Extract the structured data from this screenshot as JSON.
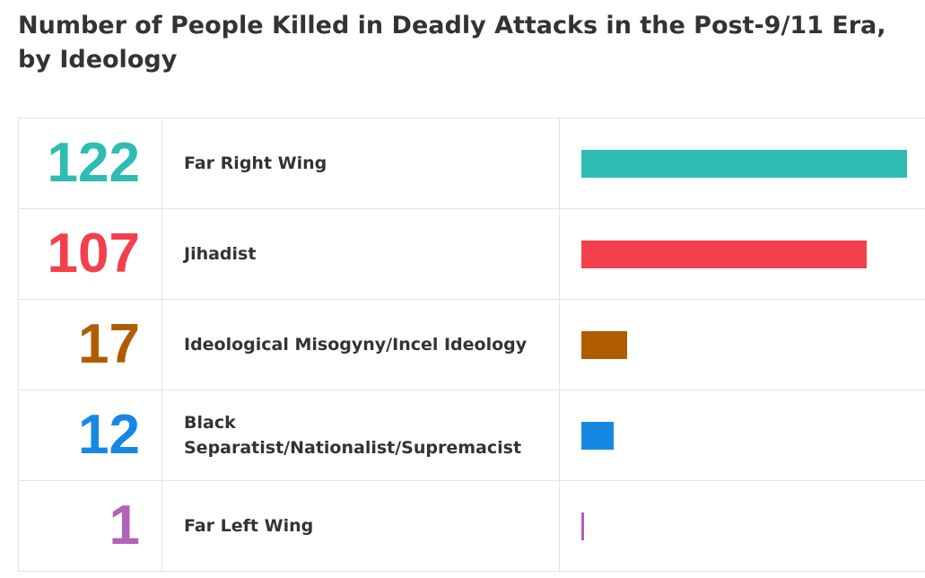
{
  "chart_data": {
    "type": "bar",
    "title": "Number of People Killed in Deadly Attacks in the Post-9/11 Era, by Ideology",
    "orientation": "horizontal",
    "categories": [
      "Far Right Wing",
      "Jihadist",
      "Ideological Misogyny/Incel Ideology",
      "Black Separatist/Nationalist/Supremacist",
      "Far Left Wing"
    ],
    "values": [
      122,
      107,
      17,
      12,
      1
    ],
    "value_labels": [
      "122",
      "107",
      "17",
      "12",
      "1"
    ],
    "colors": [
      "#2ebcb3",
      "#f4404d",
      "#b05c00",
      "#1688e3",
      "#b063b8"
    ],
    "xlim": [
      0,
      122
    ],
    "grid": false,
    "legend": "none"
  }
}
